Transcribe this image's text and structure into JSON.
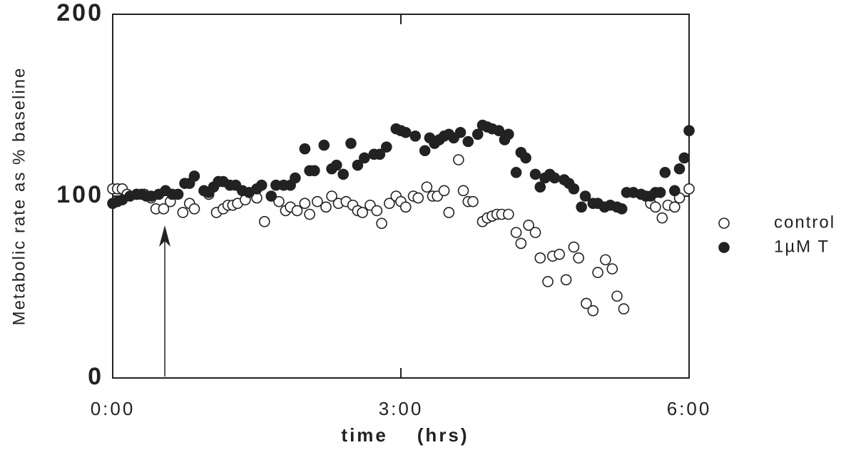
{
  "chart_data": {
    "type": "scatter",
    "y_label": "Metabolic rate as % baseline",
    "x_label": "time    (hrs)",
    "xlim": [
      0,
      6
    ],
    "xticks": [
      {
        "value": 0,
        "label": "0:00"
      },
      {
        "value": 3,
        "label": "3:00"
      },
      {
        "value": 6,
        "label": "6:00"
      }
    ],
    "ylim": [
      0,
      200
    ],
    "yticks": [
      0,
      100,
      200
    ],
    "series": [
      {
        "name": "control",
        "color": "#222222",
        "filled": false,
        "x": [
          0.0,
          0.05,
          0.1,
          0.15,
          0.25,
          0.33,
          0.4,
          0.45,
          0.53,
          0.6,
          0.73,
          0.8,
          0.85,
          1.0,
          1.08,
          1.15,
          1.2,
          1.25,
          1.3,
          1.38,
          1.5,
          1.58,
          1.73,
          1.8,
          1.85,
          1.92,
          2.0,
          2.05,
          2.13,
          2.22,
          2.28,
          2.35,
          2.43,
          2.5,
          2.55,
          2.6,
          2.68,
          2.75,
          2.8,
          2.88,
          2.95,
          3.0,
          3.05,
          3.13,
          3.18,
          3.27,
          3.33,
          3.38,
          3.45,
          3.5,
          3.6,
          3.65,
          3.7,
          3.75,
          3.85,
          3.9,
          3.95,
          4.0,
          4.05,
          4.12,
          4.2,
          4.25,
          4.33,
          4.4,
          4.45,
          4.53,
          4.58,
          4.65,
          4.72,
          4.8,
          4.85,
          4.93,
          5.0,
          5.05,
          5.13,
          5.2,
          5.25,
          5.32,
          5.6,
          5.65,
          5.72,
          5.78,
          5.85,
          5.9,
          6.0
        ],
        "values": [
          104,
          104,
          104,
          101,
          101,
          101,
          99,
          93,
          93,
          97,
          91,
          96,
          93,
          101,
          91,
          93,
          95,
          95,
          96,
          98,
          99,
          86,
          97,
          92,
          94,
          92,
          96,
          90,
          97,
          94,
          100,
          96,
          97,
          95,
          92,
          91,
          95,
          92,
          85,
          96,
          100,
          97,
          94,
          100,
          99,
          105,
          100,
          100,
          103,
          91,
          120,
          103,
          97,
          97,
          86,
          88,
          89,
          90,
          90,
          90,
          80,
          74,
          84,
          80,
          66,
          53,
          67,
          68,
          54,
          72,
          66,
          41,
          37,
          58,
          65,
          60,
          45,
          38,
          96,
          94,
          88,
          95,
          94,
          99,
          104
        ]
      },
      {
        "name": "1µM T",
        "color": "#222222",
        "filled": true,
        "x": [
          0.0,
          0.05,
          0.1,
          0.18,
          0.25,
          0.3,
          0.35,
          0.4,
          0.48,
          0.55,
          0.62,
          0.68,
          0.75,
          0.8,
          0.85,
          0.95,
          1.0,
          1.05,
          1.1,
          1.15,
          1.22,
          1.28,
          1.35,
          1.42,
          1.5,
          1.55,
          1.65,
          1.7,
          1.78,
          1.85,
          1.9,
          2.0,
          2.05,
          2.1,
          2.2,
          2.28,
          2.33,
          2.4,
          2.48,
          2.55,
          2.62,
          2.72,
          2.78,
          2.85,
          2.95,
          3.0,
          3.05,
          3.15,
          3.25,
          3.3,
          3.35,
          3.4,
          3.45,
          3.5,
          3.55,
          3.62,
          3.7,
          3.8,
          3.85,
          3.9,
          3.95,
          4.02,
          4.08,
          4.12,
          4.2,
          4.25,
          4.3,
          4.4,
          4.45,
          4.5,
          4.55,
          4.6,
          4.7,
          4.75,
          4.8,
          4.88,
          4.92,
          5.0,
          5.05,
          5.12,
          5.18,
          5.25,
          5.3,
          5.35,
          5.42,
          5.5,
          5.55,
          5.6,
          5.65,
          5.7,
          5.75,
          5.85,
          5.9,
          5.95,
          6.0
        ],
        "values": [
          96,
          97,
          98,
          100,
          101,
          101,
          100,
          100,
          101,
          103,
          101,
          101,
          107,
          107,
          111,
          103,
          102,
          105,
          108,
          108,
          106,
          106,
          103,
          102,
          104,
          106,
          100,
          106,
          106,
          106,
          110,
          126,
          114,
          114,
          128,
          115,
          117,
          112,
          129,
          117,
          121,
          123,
          123,
          127,
          137,
          136,
          135,
          133,
          125,
          132,
          129,
          131,
          133,
          134,
          132,
          135,
          130,
          134,
          139,
          138,
          137,
          136,
          131,
          134,
          113,
          124,
          121,
          112,
          105,
          110,
          112,
          110,
          109,
          107,
          104,
          94,
          100,
          96,
          96,
          94,
          95,
          94,
          93,
          102,
          102,
          101,
          100,
          100,
          102,
          102,
          113,
          103,
          115,
          121,
          136
        ]
      }
    ]
  }
}
